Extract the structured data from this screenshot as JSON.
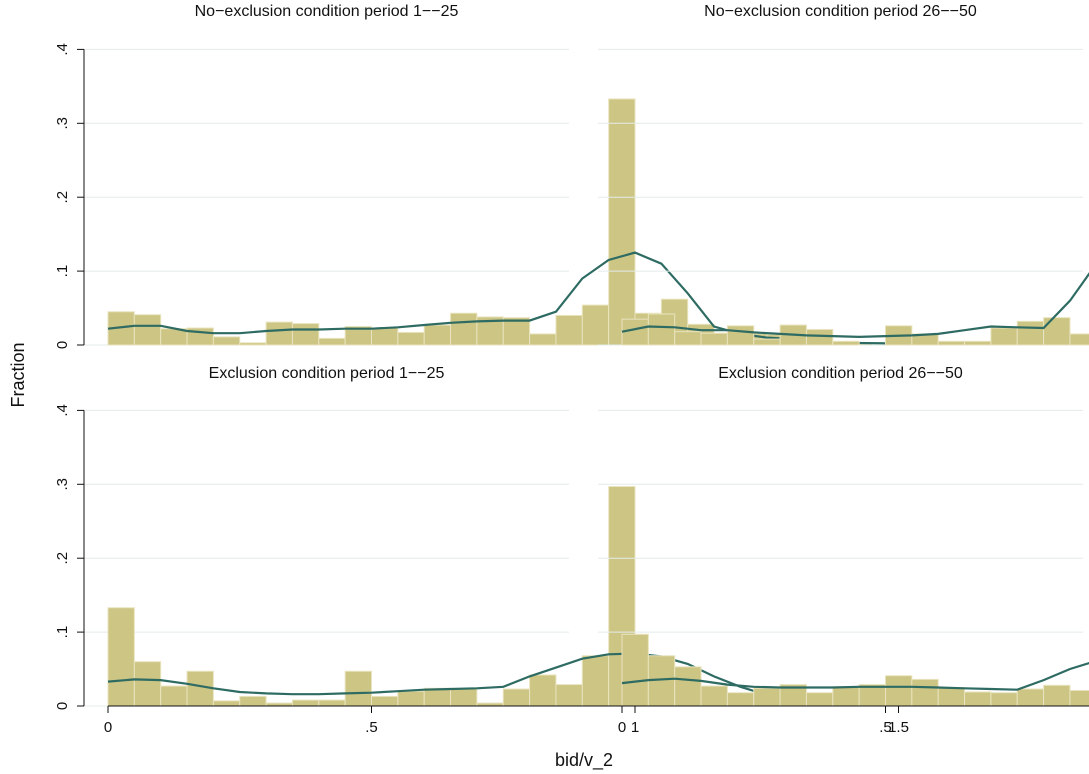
{
  "figure": {
    "ylabel": "Fraction",
    "xlabel": "bid/v_2",
    "x_ticks": [
      0,
      0.5,
      1,
      1.5
    ],
    "x_tick_labels": [
      "0",
      ".5",
      "1",
      "1.5"
    ],
    "y_ticks": [
      0,
      0.1,
      0.2,
      0.3,
      0.4
    ],
    "y_tick_labels": [
      "0",
      ".1",
      ".2",
      ".3",
      ".4"
    ],
    "xlim": [
      -0.05,
      1.72
    ],
    "ylim": [
      0,
      0.4
    ]
  },
  "colors": {
    "bar": "#cdc584",
    "curve": "#2e6b63"
  },
  "chart_data": [
    {
      "type": "bar",
      "title": "No−exclusion condition period 1−−25",
      "bin_width": 0.05,
      "bin_starts": [
        0,
        0.05,
        0.1,
        0.15,
        0.2,
        0.25,
        0.3,
        0.35,
        0.4,
        0.45,
        0.5,
        0.55,
        0.6,
        0.65,
        0.7,
        0.75,
        0.8,
        0.85,
        0.9,
        0.95,
        1.0,
        1.05,
        1.1,
        1.15,
        1.2,
        1.25,
        1.3,
        1.35,
        1.4,
        1.45,
        1.5,
        1.55,
        1.6,
        1.65,
        1.7
      ],
      "values": [
        0.045,
        0.041,
        0.022,
        0.023,
        0.011,
        0.003,
        0.031,
        0.029,
        0.009,
        0.025,
        0.023,
        0.017,
        0.027,
        0.043,
        0.038,
        0.037,
        0.015,
        0.04,
        0.054,
        0.333,
        0.043,
        0.062,
        0.028,
        0.012,
        0.015,
        0.014,
        0.005,
        0.003,
        0.002,
        0,
        0.002,
        0,
        0.002,
        0.001,
        0.003
      ],
      "density_x": [
        0,
        0.05,
        0.1,
        0.15,
        0.2,
        0.25,
        0.3,
        0.35,
        0.4,
        0.45,
        0.5,
        0.55,
        0.6,
        0.65,
        0.7,
        0.75,
        0.8,
        0.85,
        0.9,
        0.95,
        1.0,
        1.05,
        1.1,
        1.15,
        1.2,
        1.25,
        1.3,
        1.35,
        1.4,
        1.5,
        1.6,
        1.7
      ],
      "density_y": [
        0.022,
        0.026,
        0.026,
        0.019,
        0.016,
        0.016,
        0.019,
        0.021,
        0.021,
        0.022,
        0.022,
        0.024,
        0.027,
        0.03,
        0.032,
        0.033,
        0.033,
        0.045,
        0.09,
        0.115,
        0.125,
        0.11,
        0.07,
        0.025,
        0.015,
        0.01,
        0.008,
        0.005,
        0.003,
        0.002,
        0.002,
        0.001
      ]
    },
    {
      "type": "bar",
      "title": "No−exclusion condition period 26−−50",
      "bin_width": 0.05,
      "bin_starts": [
        0,
        0.05,
        0.1,
        0.15,
        0.2,
        0.25,
        0.3,
        0.35,
        0.4,
        0.45,
        0.5,
        0.55,
        0.6,
        0.65,
        0.7,
        0.75,
        0.8,
        0.85,
        0.9,
        0.95,
        1.0,
        1.05,
        1.1,
        1.15,
        1.2,
        1.25,
        1.3,
        1.35,
        1.4,
        1.45,
        1.5,
        1.55,
        1.6,
        1.65,
        1.7
      ],
      "values": [
        0.035,
        0.042,
        0.018,
        0.016,
        0.026,
        0.008,
        0.027,
        0.021,
        0.005,
        0,
        0.026,
        0.015,
        0.005,
        0.005,
        0.023,
        0.032,
        0.037,
        0.015,
        0.015,
        0.038,
        0.355,
        0.085,
        0.063,
        0.034,
        0.024,
        0.013,
        0.005,
        0.012,
        0.005,
        0.003,
        0.007,
        0.004,
        0.007,
        0.003,
        0
      ],
      "density_x": [
        0,
        0.05,
        0.1,
        0.15,
        0.2,
        0.25,
        0.3,
        0.35,
        0.4,
        0.45,
        0.5,
        0.55,
        0.6,
        0.65,
        0.7,
        0.75,
        0.8,
        0.85,
        0.9,
        0.95,
        1.0,
        1.05,
        1.1,
        1.15,
        1.2,
        1.25,
        1.3,
        1.35,
        1.4,
        1.5,
        1.6,
        1.65
      ],
      "density_y": [
        0.018,
        0.025,
        0.024,
        0.02,
        0.02,
        0.017,
        0.015,
        0.013,
        0.012,
        0.011,
        0.012,
        0.013,
        0.015,
        0.02,
        0.025,
        0.024,
        0.023,
        0.06,
        0.11,
        0.128,
        0.13,
        0.11,
        0.075,
        0.038,
        0.02,
        0.013,
        0.01,
        0.008,
        0.006,
        0.006,
        0.005,
        0.004
      ]
    },
    {
      "type": "bar",
      "title": "Exclusion condition period 1−−25",
      "bin_width": 0.05,
      "bin_starts": [
        0,
        0.05,
        0.1,
        0.15,
        0.2,
        0.25,
        0.3,
        0.35,
        0.4,
        0.45,
        0.5,
        0.55,
        0.6,
        0.65,
        0.7,
        0.75,
        0.8,
        0.85,
        0.9,
        0.95,
        1.0,
        1.05,
        1.1,
        1.15,
        1.2,
        1.25,
        1.3,
        1.35,
        1.4,
        1.45,
        1.5,
        1.55,
        1.6,
        1.65,
        1.7
      ],
      "values": [
        0.133,
        0.06,
        0.027,
        0.047,
        0.007,
        0.013,
        0.004,
        0.008,
        0.008,
        0.047,
        0.013,
        0.02,
        0.024,
        0.023,
        0.004,
        0.023,
        0.042,
        0.029,
        0.068,
        0.297,
        0.037,
        0.05,
        0.013,
        0.011,
        0.011,
        0.004,
        0.002,
        0.001,
        0,
        0,
        0.001,
        0,
        0,
        0,
        0.005
      ],
      "density_x": [
        0,
        0.05,
        0.1,
        0.15,
        0.2,
        0.25,
        0.3,
        0.35,
        0.4,
        0.45,
        0.5,
        0.55,
        0.6,
        0.65,
        0.7,
        0.75,
        0.8,
        0.85,
        0.9,
        0.95,
        1.0,
        1.05,
        1.1,
        1.15,
        1.2,
        1.25,
        1.3,
        1.35,
        1.4,
        1.5,
        1.6,
        1.7
      ],
      "density_y": [
        0.033,
        0.036,
        0.035,
        0.03,
        0.024,
        0.019,
        0.017,
        0.016,
        0.016,
        0.017,
        0.018,
        0.02,
        0.022,
        0.023,
        0.024,
        0.026,
        0.04,
        0.052,
        0.064,
        0.07,
        0.071,
        0.067,
        0.057,
        0.04,
        0.026,
        0.015,
        0.01,
        0.005,
        0.003,
        0.001,
        0.001,
        0.001
      ]
    },
    {
      "type": "bar",
      "title": "Exclusion condition period 26−−50",
      "bin_width": 0.05,
      "bin_starts": [
        0,
        0.05,
        0.1,
        0.15,
        0.2,
        0.25,
        0.3,
        0.35,
        0.4,
        0.45,
        0.5,
        0.55,
        0.6,
        0.65,
        0.7,
        0.75,
        0.8,
        0.85,
        0.9,
        0.95,
        1.0,
        1.05,
        1.1,
        1.15,
        1.2,
        1.25,
        1.3,
        1.35,
        1.4,
        1.45,
        1.5,
        1.55,
        1.6,
        1.65,
        1.7
      ],
      "values": [
        0.097,
        0.068,
        0.053,
        0.027,
        0.018,
        0.024,
        0.029,
        0.018,
        0.026,
        0.029,
        0.041,
        0.036,
        0.025,
        0.019,
        0.018,
        0.023,
        0.028,
        0.021,
        0.038,
        0.307,
        0.009,
        0.058,
        0.009,
        0.013,
        0.004,
        0,
        0.001,
        0,
        0,
        0,
        0,
        0.001,
        0,
        0.001,
        0.004
      ],
      "density_x": [
        0,
        0.05,
        0.1,
        0.15,
        0.2,
        0.25,
        0.3,
        0.35,
        0.4,
        0.45,
        0.5,
        0.55,
        0.6,
        0.65,
        0.7,
        0.75,
        0.8,
        0.85,
        0.9,
        0.95,
        1.0,
        1.05,
        1.1,
        1.15,
        1.2,
        1.25,
        1.3,
        1.35,
        1.4,
        1.5,
        1.6,
        1.7
      ],
      "density_y": [
        0.031,
        0.035,
        0.037,
        0.034,
        0.029,
        0.026,
        0.025,
        0.025,
        0.025,
        0.026,
        0.026,
        0.026,
        0.025,
        0.024,
        0.023,
        0.022,
        0.035,
        0.05,
        0.061,
        0.066,
        0.066,
        0.063,
        0.05,
        0.035,
        0.022,
        0.009,
        0.004,
        0.002,
        0.001,
        0.001,
        0.001,
        0.001
      ]
    }
  ]
}
